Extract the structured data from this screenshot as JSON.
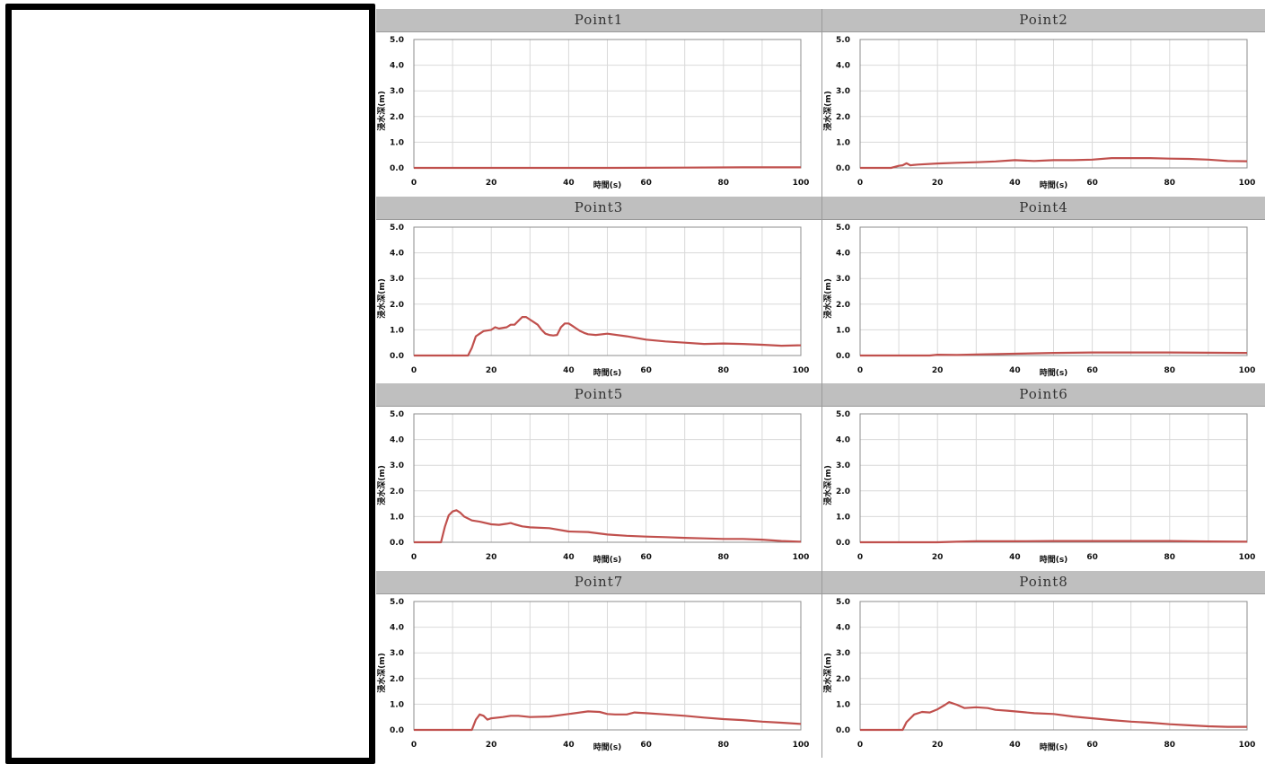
{
  "chart_data": [
    {
      "type": "line",
      "title": "Point1",
      "xlabel": "時間(s)",
      "ylabel": "浸水深(m)",
      "xlim": [
        0,
        100
      ],
      "ylim": [
        0,
        5
      ],
      "xticks": [
        "0",
        "20",
        "40",
        "60",
        "80",
        "100"
      ],
      "yticks": [
        "0.0",
        "1.0",
        "2.0",
        "3.0",
        "4.0",
        "5.0"
      ],
      "grid": true,
      "color": "#c0504d",
      "series": [
        {
          "x": [
            0,
            50,
            70,
            85,
            100
          ],
          "y": [
            0,
            0,
            0.01,
            0.02,
            0.02
          ]
        }
      ]
    },
    {
      "type": "line",
      "title": "Point2",
      "xlabel": "時間(s)",
      "ylabel": "浸水深(m)",
      "xlim": [
        0,
        100
      ],
      "ylim": [
        0,
        5
      ],
      "xticks": [
        "0",
        "20",
        "40",
        "60",
        "80",
        "100"
      ],
      "yticks": [
        "0.0",
        "1.0",
        "2.0",
        "3.0",
        "4.0",
        "5.0"
      ],
      "grid": true,
      "color": "#c0504d",
      "series": [
        {
          "x": [
            0,
            8,
            10,
            11,
            12,
            13,
            15,
            20,
            25,
            30,
            35,
            40,
            45,
            50,
            55,
            60,
            65,
            70,
            75,
            80,
            85,
            90,
            95,
            100
          ],
          "y": [
            0,
            0,
            0.08,
            0.1,
            0.18,
            0.1,
            0.13,
            0.17,
            0.2,
            0.22,
            0.25,
            0.3,
            0.27,
            0.3,
            0.3,
            0.32,
            0.38,
            0.38,
            0.38,
            0.36,
            0.35,
            0.32,
            0.27,
            0.26
          ]
        }
      ]
    },
    {
      "type": "line",
      "title": "Point3",
      "xlabel": "時間(s)",
      "ylabel": "浸水深(m)",
      "xlim": [
        0,
        100
      ],
      "ylim": [
        0,
        5
      ],
      "xticks": [
        "0",
        "20",
        "40",
        "60",
        "80",
        "100"
      ],
      "yticks": [
        "0.0",
        "1.0",
        "2.0",
        "3.0",
        "4.0",
        "5.0"
      ],
      "grid": true,
      "color": "#c0504d",
      "series": [
        {
          "x": [
            0,
            14,
            15,
            16,
            17,
            18,
            20,
            21,
            22,
            24,
            25,
            26,
            27,
            28,
            29,
            30,
            31,
            32,
            33,
            34,
            35,
            36,
            37,
            38,
            39,
            40,
            41,
            42,
            43,
            44,
            45,
            47,
            50,
            55,
            60,
            65,
            70,
            75,
            80,
            85,
            90,
            95,
            100
          ],
          "y": [
            0,
            0,
            0.3,
            0.75,
            0.85,
            0.95,
            1.0,
            1.1,
            1.05,
            1.1,
            1.2,
            1.2,
            1.35,
            1.5,
            1.5,
            1.4,
            1.3,
            1.2,
            1.0,
            0.85,
            0.8,
            0.78,
            0.8,
            1.1,
            1.25,
            1.25,
            1.15,
            1.05,
            0.95,
            0.88,
            0.83,
            0.8,
            0.85,
            0.75,
            0.62,
            0.55,
            0.5,
            0.45,
            0.47,
            0.45,
            0.42,
            0.38,
            0.4
          ]
        }
      ]
    },
    {
      "type": "line",
      "title": "Point4",
      "xlabel": "時間(s)",
      "ylabel": "浸水深(m)",
      "xlim": [
        0,
        100
      ],
      "ylim": [
        0,
        5
      ],
      "xticks": [
        "0",
        "20",
        "40",
        "60",
        "80",
        "100"
      ],
      "yticks": [
        "0.0",
        "1.0",
        "2.0",
        "3.0",
        "4.0",
        "5.0"
      ],
      "grid": true,
      "color": "#c0504d",
      "series": [
        {
          "x": [
            0,
            18,
            20,
            25,
            30,
            40,
            50,
            60,
            70,
            80,
            90,
            100
          ],
          "y": [
            0,
            0,
            0.03,
            0.02,
            0.04,
            0.07,
            0.1,
            0.12,
            0.12,
            0.12,
            0.11,
            0.1
          ]
        }
      ]
    },
    {
      "type": "line",
      "title": "Point5",
      "xlabel": "時間(s)",
      "ylabel": "浸水深(m)",
      "xlim": [
        0,
        100
      ],
      "ylim": [
        0,
        5
      ],
      "xticks": [
        "0",
        "20",
        "40",
        "60",
        "80",
        "100"
      ],
      "yticks": [
        "0.0",
        "1.0",
        "2.0",
        "3.0",
        "4.0",
        "5.0"
      ],
      "grid": true,
      "color": "#c0504d",
      "series": [
        {
          "x": [
            0,
            7,
            8,
            9,
            10,
            11,
            12,
            13,
            15,
            17,
            20,
            22,
            24,
            25,
            26,
            28,
            30,
            35,
            40,
            45,
            50,
            55,
            60,
            65,
            70,
            75,
            80,
            85,
            90,
            95,
            100
          ],
          "y": [
            0,
            0,
            0.6,
            1.05,
            1.2,
            1.25,
            1.15,
            1.0,
            0.85,
            0.8,
            0.7,
            0.68,
            0.72,
            0.75,
            0.7,
            0.62,
            0.58,
            0.55,
            0.42,
            0.4,
            0.3,
            0.25,
            0.22,
            0.2,
            0.17,
            0.15,
            0.13,
            0.13,
            0.1,
            0.05,
            0.02
          ]
        }
      ]
    },
    {
      "type": "line",
      "title": "Point6",
      "xlabel": "時間(s)",
      "ylabel": "浸水深(m)",
      "xlim": [
        0,
        100
      ],
      "ylim": [
        0,
        5
      ],
      "xticks": [
        "0",
        "20",
        "40",
        "60",
        "80",
        "100"
      ],
      "yticks": [
        "0.0",
        "1.0",
        "2.0",
        "3.0",
        "4.0",
        "5.0"
      ],
      "grid": true,
      "color": "#c0504d",
      "series": [
        {
          "x": [
            0,
            20,
            25,
            30,
            40,
            50,
            60,
            70,
            80,
            90,
            100
          ],
          "y": [
            0,
            0,
            0.02,
            0.04,
            0.04,
            0.05,
            0.05,
            0.05,
            0.05,
            0.03,
            0.02
          ]
        }
      ]
    },
    {
      "type": "line",
      "title": "Point7",
      "xlabel": "時間(s)",
      "ylabel": "浸水深(m)",
      "xlim": [
        0,
        100
      ],
      "ylim": [
        0,
        5
      ],
      "xticks": [
        "0",
        "20",
        "40",
        "60",
        "80",
        "100"
      ],
      "yticks": [
        "0.0",
        "1.0",
        "2.0",
        "3.0",
        "4.0",
        "5.0"
      ],
      "grid": true,
      "color": "#c0504d",
      "series": [
        {
          "x": [
            0,
            15,
            16,
            17,
            18,
            19,
            20,
            23,
            25,
            27,
            30,
            35,
            40,
            45,
            48,
            50,
            52,
            55,
            57,
            60,
            65,
            70,
            75,
            80,
            85,
            90,
            95,
            100
          ],
          "y": [
            0,
            0,
            0.4,
            0.6,
            0.55,
            0.4,
            0.45,
            0.5,
            0.55,
            0.55,
            0.5,
            0.52,
            0.62,
            0.72,
            0.7,
            0.62,
            0.6,
            0.6,
            0.68,
            0.65,
            0.6,
            0.55,
            0.48,
            0.42,
            0.38,
            0.32,
            0.28,
            0.23
          ]
        }
      ]
    },
    {
      "type": "line",
      "title": "Point8",
      "xlabel": "時間(s)",
      "ylabel": "浸水深(m)",
      "xlim": [
        0,
        100
      ],
      "ylim": [
        0,
        5
      ],
      "xticks": [
        "0",
        "20",
        "40",
        "60",
        "80",
        "100"
      ],
      "yticks": [
        "0.0",
        "1.0",
        "2.0",
        "3.0",
        "4.0",
        "5.0"
      ],
      "grid": true,
      "color": "#c0504d",
      "series": [
        {
          "x": [
            0,
            11,
            12,
            14,
            16,
            18,
            20,
            22,
            23,
            25,
            27,
            30,
            33,
            35,
            38,
            40,
            45,
            50,
            55,
            60,
            65,
            70,
            75,
            80,
            85,
            90,
            95,
            100
          ],
          "y": [
            0,
            0,
            0.3,
            0.6,
            0.7,
            0.68,
            0.8,
            0.98,
            1.08,
            0.98,
            0.85,
            0.88,
            0.85,
            0.78,
            0.75,
            0.72,
            0.65,
            0.62,
            0.52,
            0.45,
            0.38,
            0.32,
            0.28,
            0.22,
            0.18,
            0.14,
            0.12,
            0.12
          ]
        }
      ]
    }
  ]
}
